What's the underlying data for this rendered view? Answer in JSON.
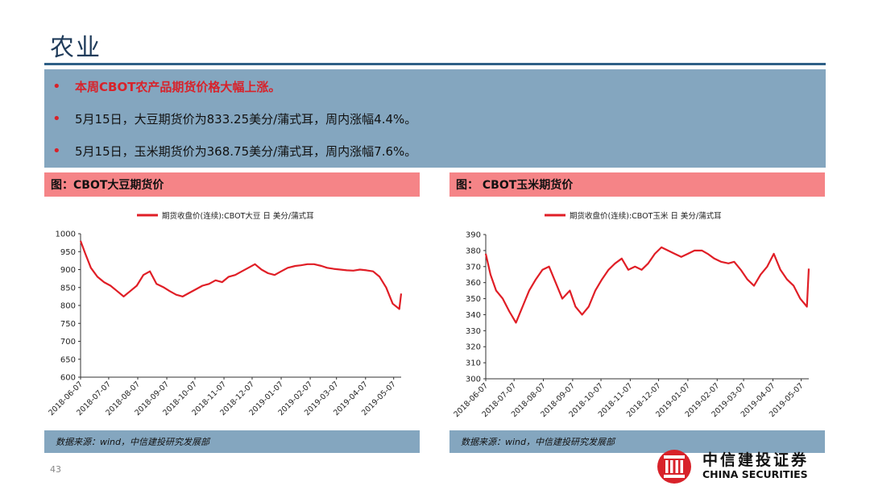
{
  "page": {
    "title": "农业",
    "page_number": "43"
  },
  "bullets": [
    {
      "text": "本周CBOT农产品期货价格大幅上涨。",
      "highlight": true
    },
    {
      "text": "5月15日，大豆期货价为833.25美分/蒲式耳，周内涨幅4.4%。",
      "highlight": false
    },
    {
      "text": "5月15日，玉米期货价为368.75美分/蒲式耳，周内涨幅7.6%。",
      "highlight": false
    }
  ],
  "logo": {
    "cn": "中信建投证券",
    "en": "CHINA SECURITIES"
  },
  "colors": {
    "series": "#e01e26",
    "header_band": "#f58487",
    "box": "#84a6bf",
    "title_rule": "#2e5f86"
  },
  "chart_data": [
    {
      "type": "line",
      "title": "图：CBOT大豆期货价",
      "source": "数据来源：wind，中信建投研究发展部",
      "legend": {
        "position": "top",
        "label": "期货收盘价(连续):CBOT大豆  日  美分/蒲式耳"
      },
      "series": [
        {
          "name": "期货收盘价(连续):CBOT大豆  日  美分/蒲式耳",
          "x": [
            "2018-06-07",
            "2018-06-12",
            "2018-06-18",
            "2018-06-25",
            "2018-07-02",
            "2018-07-09",
            "2018-07-16",
            "2018-07-23",
            "2018-07-30",
            "2018-08-06",
            "2018-08-13",
            "2018-08-20",
            "2018-08-27",
            "2018-09-04",
            "2018-09-10",
            "2018-09-17",
            "2018-09-24",
            "2018-10-01",
            "2018-10-08",
            "2018-10-15",
            "2018-10-22",
            "2018-10-29",
            "2018-11-05",
            "2018-11-12",
            "2018-11-19",
            "2018-11-26",
            "2018-12-03",
            "2018-12-10",
            "2018-12-17",
            "2018-12-24",
            "2018-12-31",
            "2019-01-07",
            "2019-01-14",
            "2019-01-22",
            "2019-01-28",
            "2019-02-04",
            "2019-02-11",
            "2019-02-19",
            "2019-02-25",
            "2019-03-04",
            "2019-03-11",
            "2019-03-18",
            "2019-03-25",
            "2019-04-01",
            "2019-04-08",
            "2019-04-15",
            "2019-04-22",
            "2019-04-29",
            "2019-05-06",
            "2019-05-13",
            "2019-05-15"
          ],
          "y": [
            980,
            945,
            905,
            880,
            865,
            855,
            840,
            825,
            840,
            855,
            885,
            895,
            860,
            850,
            840,
            830,
            825,
            835,
            845,
            855,
            860,
            870,
            865,
            880,
            885,
            895,
            905,
            915,
            900,
            890,
            885,
            895,
            905,
            910,
            912,
            915,
            915,
            910,
            905,
            902,
            900,
            898,
            897,
            900,
            898,
            895,
            880,
            850,
            805,
            790,
            833.25
          ]
        }
      ],
      "ylim": [
        600,
        1000
      ],
      "yticks": [
        600,
        650,
        700,
        750,
        800,
        850,
        900,
        950,
        1000
      ],
      "xticks": [
        "2018-06-07",
        "2018-07-07",
        "2018-08-07",
        "2018-09-07",
        "2018-10-07",
        "2018-11-07",
        "2018-12-07",
        "2019-01-07",
        "2019-02-07",
        "2019-03-07",
        "2019-04-07",
        "2019-05-07"
      ],
      "grid": false
    },
    {
      "type": "line",
      "title": "图： CBOT玉米期货价",
      "source": "数据来源：wind，中信建投研究发展部",
      "legend": {
        "position": "top",
        "label": "期货收盘价(连续):CBOT玉米  日  美分/蒲式耳"
      },
      "series": [
        {
          "name": "期货收盘价(连续):CBOT玉米  日  美分/蒲式耳",
          "x": [
            "2018-06-07",
            "2018-06-12",
            "2018-06-18",
            "2018-06-25",
            "2018-07-02",
            "2018-07-09",
            "2018-07-16",
            "2018-07-23",
            "2018-07-30",
            "2018-08-06",
            "2018-08-13",
            "2018-08-20",
            "2018-08-27",
            "2018-09-04",
            "2018-09-10",
            "2018-09-17",
            "2018-09-24",
            "2018-10-01",
            "2018-10-08",
            "2018-10-15",
            "2018-10-22",
            "2018-10-29",
            "2018-11-05",
            "2018-11-12",
            "2018-11-19",
            "2018-11-26",
            "2018-12-03",
            "2018-12-10",
            "2018-12-17",
            "2018-12-24",
            "2018-12-31",
            "2019-01-07",
            "2019-01-14",
            "2019-01-22",
            "2019-01-28",
            "2019-02-04",
            "2019-02-11",
            "2019-02-19",
            "2019-02-25",
            "2019-03-04",
            "2019-03-11",
            "2019-03-18",
            "2019-03-25",
            "2019-04-01",
            "2019-04-08",
            "2019-04-15",
            "2019-04-22",
            "2019-04-29",
            "2019-05-06",
            "2019-05-13",
            "2019-05-15"
          ],
          "y": [
            378,
            365,
            355,
            350,
            342,
            335,
            345,
            355,
            362,
            368,
            370,
            360,
            350,
            355,
            345,
            340,
            345,
            355,
            362,
            368,
            372,
            375,
            368,
            370,
            368,
            372,
            378,
            382,
            380,
            378,
            376,
            378,
            380,
            380,
            378,
            375,
            373,
            372,
            373,
            368,
            362,
            358,
            365,
            370,
            378,
            368,
            362,
            358,
            350,
            345,
            368.75
          ]
        }
      ],
      "ylim": [
        300,
        390
      ],
      "yticks": [
        300,
        310,
        320,
        330,
        340,
        350,
        360,
        370,
        380,
        390
      ],
      "xticks": [
        "2018-06-07",
        "2018-07-07",
        "2018-08-07",
        "2018-09-07",
        "2018-10-07",
        "2018-11-07",
        "2018-12-07",
        "2019-01-07",
        "2019-02-07",
        "2019-03-07",
        "2019-04-07",
        "2019-05-07"
      ],
      "grid": false
    }
  ]
}
